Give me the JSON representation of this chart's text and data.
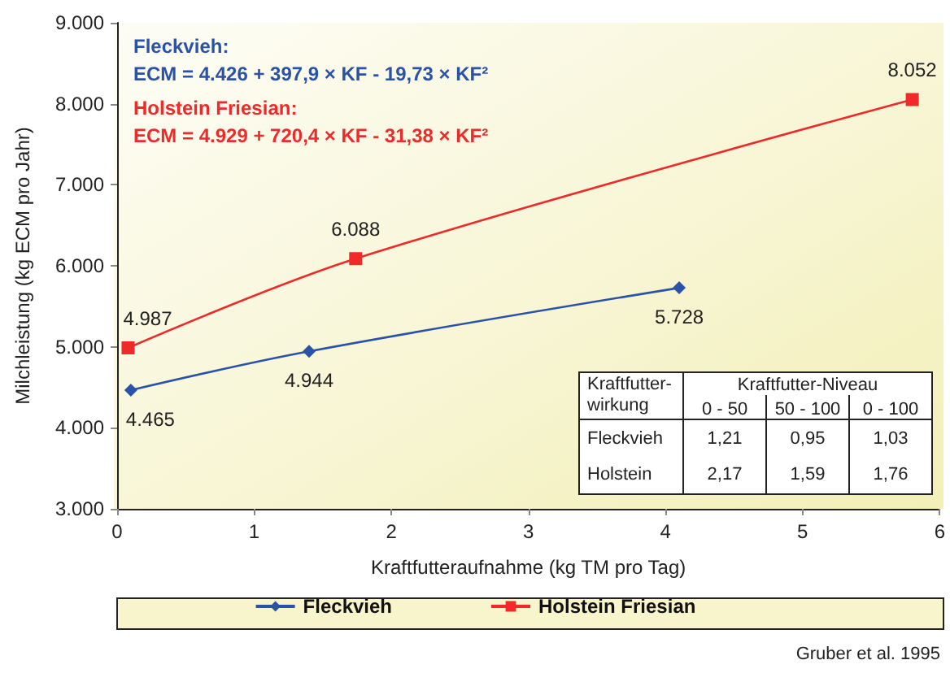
{
  "chart_data": {
    "type": "line",
    "xlabel": "Kraftfutteraufnahme (kg TM pro Tag)",
    "ylabel": "Milchleistung (kg ECM pro Jahr)",
    "xlim": [
      0,
      6
    ],
    "xticks": [
      0,
      1,
      2,
      3,
      4,
      5,
      6
    ],
    "ylim": [
      3000,
      9000
    ],
    "yticks": [
      {
        "value": 3000,
        "label": "3.000"
      },
      {
        "value": 4000,
        "label": "4.000"
      },
      {
        "value": 5000,
        "label": "5.000"
      },
      {
        "value": 6000,
        "label": "6.000"
      },
      {
        "value": 7000,
        "label": "7.000"
      },
      {
        "value": 8000,
        "label": "8.000"
      },
      {
        "value": 9000,
        "label": "9.000"
      }
    ],
    "series": [
      {
        "name": "Fleckvieh",
        "color": "#2a52a8",
        "marker": "diamond",
        "x": [
          0.1,
          1.4,
          4.1
        ],
        "values": [
          4465,
          4944,
          5728
        ],
        "value_labels": [
          "4.465",
          "4.944",
          "5.728"
        ]
      },
      {
        "name": "Holstein Friesian",
        "color": "#ee2a2a",
        "marker": "square",
        "x": [
          0.08,
          1.74,
          5.8
        ],
        "values": [
          4987,
          6088,
          8052
        ],
        "value_labels": [
          "4.987",
          "6.088",
          "8.052"
        ]
      }
    ],
    "grid": false,
    "legend": "bottom",
    "line_style": "solid",
    "annotations": [
      "Fleckvieh:\nECM = 4.426 + 397,9 × KF - 19,73 × KF²",
      "Holstein Friesian:\nECM = 4.929 + 720,4 × KF - 31,38 × KF²",
      "Kraftfutter-\nwirkung",
      "Kraftfutter-Niveau",
      "0 - 50",
      "50 - 100",
      "0 - 100",
      "Fleckvieh",
      "1,21",
      "0,95",
      "1,03",
      "Holstein",
      "2,17",
      "1,59",
      "1,76",
      "Gruber et al. 1995"
    ]
  }
}
